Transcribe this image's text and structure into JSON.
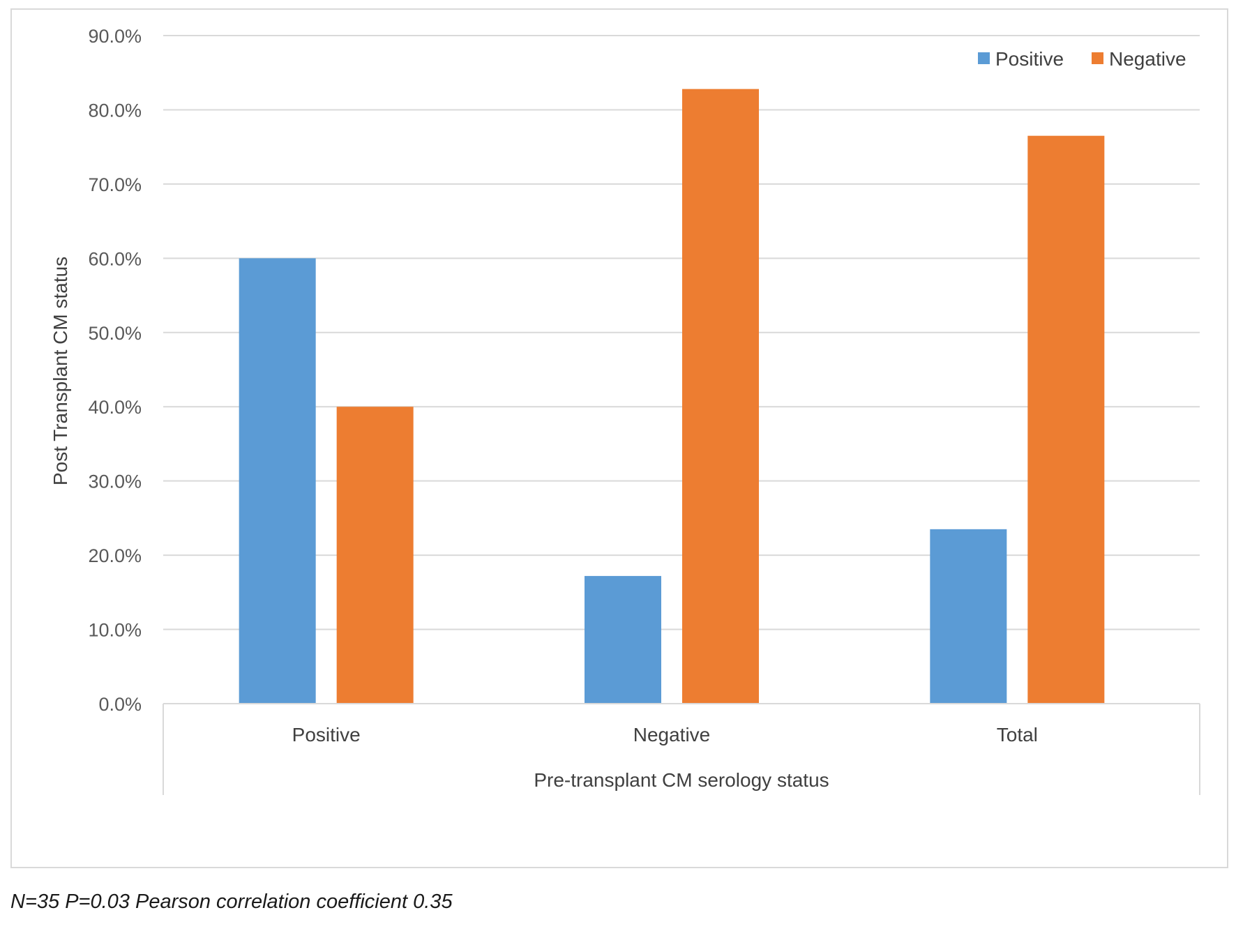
{
  "chart_data": {
    "type": "bar",
    "categories": [
      "Positive",
      "Negative",
      "Total"
    ],
    "series": [
      {
        "name": "Positive",
        "values": [
          60.0,
          17.2,
          23.5
        ],
        "color": "#5b9bd5"
      },
      {
        "name": "Negative",
        "values": [
          40.0,
          82.8,
          76.5
        ],
        "color": "#ed7d31"
      }
    ],
    "ylim": [
      0,
      90
    ],
    "yticks": [
      "0.0%",
      "10.0%",
      "20.0%",
      "30.0%",
      "40.0%",
      "50.0%",
      "60.0%",
      "70.0%",
      "80.0%",
      "90.0%"
    ],
    "xlabel": "Pre-transplant CM serology status",
    "ylabel": "Post Transplant CM status",
    "legend_position": "top-right",
    "grid": true
  },
  "footnote": "N=35 P=0.03 Pearson correlation coefficient 0.35"
}
